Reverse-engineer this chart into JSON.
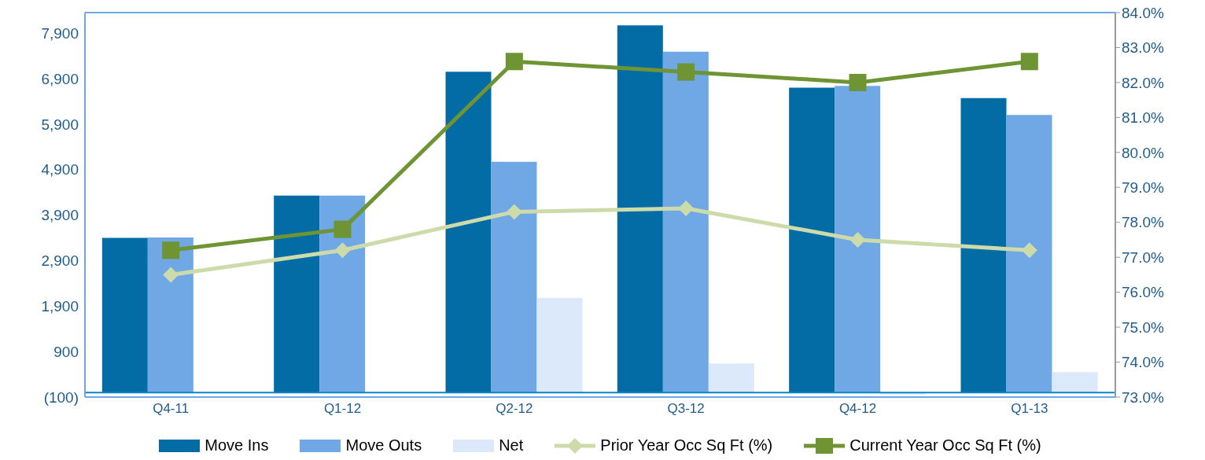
{
  "chart_data": {
    "type": "bar",
    "categories": [
      "Q4-11",
      "Q1-12",
      "Q2-12",
      "Q3-12",
      "Q4-12",
      "Q1-13"
    ],
    "series": [
      {
        "name": "Move Ins",
        "color": "#046ca4",
        "values": [
          3400,
          4330,
          7050,
          8070,
          6700,
          6470
        ]
      },
      {
        "name": "Move Outs",
        "color": "#6fa8e4",
        "values": [
          3410,
          4330,
          5070,
          7490,
          6740,
          6100
        ]
      },
      {
        "name": "Net",
        "color": "#dbe9fb",
        "values": [
          0,
          0,
          2080,
          640,
          -40,
          450
        ]
      },
      {
        "name": "Prior Year Occ Sq Ft (%)",
        "type": "line",
        "axis": "y2",
        "marker": "diamond",
        "color": "#cddbab",
        "values": [
          76.5,
          77.2,
          78.3,
          78.4,
          77.5,
          77.2
        ]
      },
      {
        "name": "Current Year Occ Sq Ft (%)",
        "type": "line",
        "axis": "y2",
        "marker": "square",
        "color": "#6e9433",
        "values": [
          77.2,
          77.8,
          82.6,
          82.3,
          82.0,
          82.6
        ]
      }
    ],
    "ylim": [
      -100,
      8350
    ],
    "yticks": [
      {
        "value": -100,
        "label": "(100)"
      },
      900,
      {
        "value": 1900,
        "label": "1,900"
      },
      {
        "value": 2900,
        "label": "2,900"
      },
      {
        "value": 3900,
        "label": "3,900"
      },
      {
        "value": 4900,
        "label": "4,900"
      },
      {
        "value": 5900,
        "label": "5,900"
      },
      {
        "value": 6900,
        "label": "6,900"
      },
      {
        "value": 7900,
        "label": "7,900"
      }
    ],
    "y2lim": [
      73,
      84
    ],
    "y2ticks": [
      {
        "value": 73,
        "label": "73.0%"
      },
      {
        "value": 74,
        "label": "74.0%"
      },
      {
        "value": 75,
        "label": "75.0%"
      },
      {
        "value": 76,
        "label": "76.0%"
      },
      {
        "value": 77,
        "label": "77.0%"
      },
      {
        "value": 78,
        "label": "78.0%"
      },
      {
        "value": 79,
        "label": "79.0%"
      },
      {
        "value": 80,
        "label": "80.0%"
      },
      {
        "value": 81,
        "label": "81.0%"
      },
      {
        "value": 82,
        "label": "82.0%"
      },
      {
        "value": 83,
        "label": "83.0%"
      },
      {
        "value": 84,
        "label": "84.0%"
      }
    ],
    "ref_lines": [
      {
        "axis": "y",
        "value": 0,
        "color": "#0a84c6"
      }
    ],
    "grid": false,
    "legend": "bottom"
  }
}
